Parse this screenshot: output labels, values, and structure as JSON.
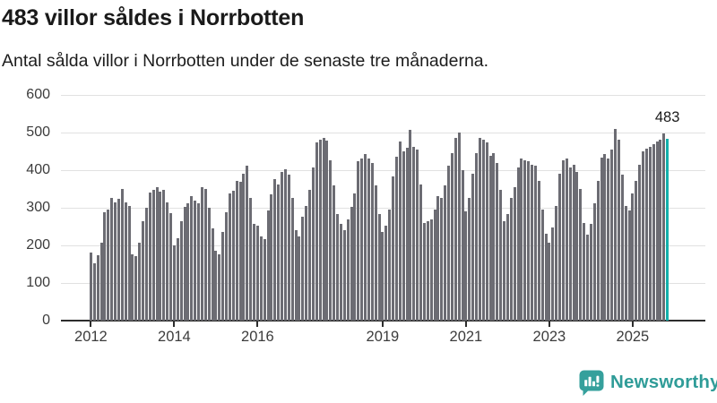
{
  "header": {
    "title": "483 villor såldes i Norrbotten",
    "subtitle": "Antal sålda villor i Norrbotten under de senaste tre månaderna."
  },
  "chart_data": {
    "type": "bar",
    "title": "483 villor såldes i Norrbotten",
    "subtitle": "Antal sålda villor i Norrbotten under de senaste tre månaderna.",
    "ylabel": "",
    "xlabel": "",
    "ylim": [
      0,
      600
    ],
    "y_ticks": [
      0,
      100,
      200,
      300,
      400,
      500,
      600
    ],
    "x_axis": {
      "tick_labels": [
        "2012",
        "2014",
        "2016",
        "2019",
        "2021",
        "2023",
        "2025"
      ],
      "tick_month_indices": [
        0,
        24,
        48,
        84,
        108,
        132,
        156
      ]
    },
    "grid": true,
    "values": [
      180,
      153,
      173,
      208,
      288,
      296,
      327,
      315,
      323,
      351,
      315,
      305,
      176,
      172,
      208,
      264,
      300,
      340,
      347,
      355,
      343,
      347,
      315,
      285,
      200,
      220,
      264,
      303,
      311,
      331,
      319,
      313,
      355,
      351,
      300,
      245,
      185,
      177,
      236,
      288,
      339,
      345,
      371,
      368,
      391,
      411,
      327,
      256,
      252,
      224,
      216,
      292,
      335,
      375,
      363,
      395,
      403,
      387,
      327,
      240,
      224,
      276,
      304,
      347,
      407,
      474,
      482,
      486,
      478,
      426,
      359,
      284,
      256,
      240,
      270,
      303,
      339,
      423,
      431,
      443,
      430,
      419,
      359,
      284,
      236,
      252,
      296,
      383,
      435,
      475,
      451,
      459,
      507,
      462,
      455,
      363,
      260,
      264,
      268,
      296,
      330,
      327,
      359,
      411,
      446,
      486,
      500,
      400,
      290,
      327,
      391,
      446,
      486,
      482,
      474,
      438,
      446,
      419,
      347,
      264,
      284,
      327,
      355,
      408,
      430,
      427,
      423,
      415,
      412,
      371,
      296,
      232,
      208,
      248,
      304,
      391,
      427,
      431,
      407,
      415,
      395,
      351,
      260,
      228,
      256,
      311,
      371,
      434,
      442,
      430,
      454,
      510,
      482,
      387,
      304,
      292,
      339,
      371,
      415,
      450,
      458,
      462,
      470,
      475,
      480,
      498,
      483
    ],
    "highlight_last_bar": true,
    "last_value": 483,
    "last_value_label": "483",
    "colors": {
      "bar": "#6c6c73",
      "highlight": "#14b1ac",
      "grid": "#e1e1e1",
      "axis": "#2d2d2d",
      "tick_text": "#3c3c3c"
    },
    "legend": null
  },
  "logo": {
    "text": "Newsworthy",
    "icon": "newsworthy-speech-bubble-chart-icon",
    "color": "#2f9c98",
    "icon_color": "#35a09c"
  }
}
